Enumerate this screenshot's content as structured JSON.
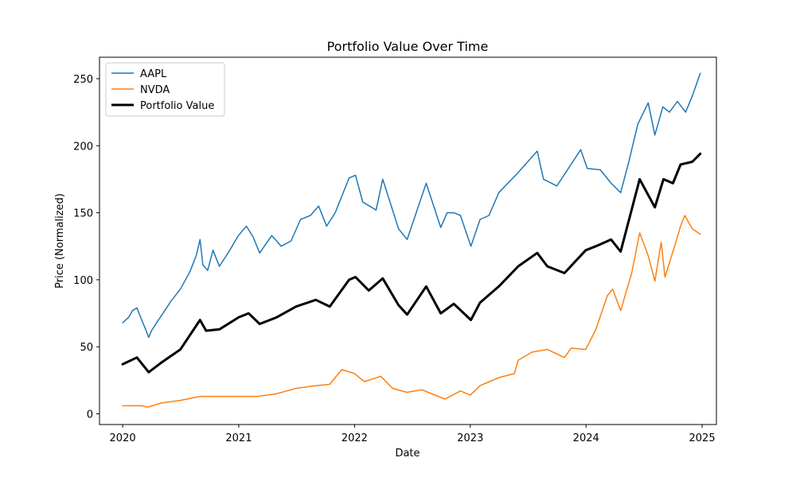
{
  "chart_data": {
    "type": "line",
    "title": "Portfolio Value Over Time",
    "xlabel": "Date",
    "ylabel": "Price (Normalized)",
    "xlim": [
      "2019-10-20",
      "2025-02-15"
    ],
    "ylim": [
      -8,
      266
    ],
    "x_ticks": [
      "2020-01-01",
      "2021-01-01",
      "2022-01-01",
      "2023-01-01",
      "2024-01-01",
      "2025-01-01"
    ],
    "x_tick_labels": [
      "2020",
      "2021",
      "2022",
      "2023",
      "2024",
      "2025"
    ],
    "y_ticks": [
      0,
      50,
      100,
      150,
      200,
      250
    ],
    "y_tick_labels": [
      "0",
      "50",
      "100",
      "150",
      "200",
      "250"
    ],
    "grid": false,
    "legend_position": "top-left",
    "series": [
      {
        "name": "AAPL",
        "color": "#1f77b4",
        "line_width": 1.5,
        "points": [
          [
            "2020-01-01",
            68
          ],
          [
            "2020-01-20",
            72
          ],
          [
            "2020-02-01",
            77
          ],
          [
            "2020-02-15",
            79
          ],
          [
            "2020-03-01",
            70
          ],
          [
            "2020-03-10",
            65
          ],
          [
            "2020-03-23",
            57
          ],
          [
            "2020-04-01",
            62
          ],
          [
            "2020-04-20",
            69
          ],
          [
            "2020-05-10",
            76
          ],
          [
            "2020-06-01",
            84
          ],
          [
            "2020-07-01",
            93
          ],
          [
            "2020-07-31",
            106
          ],
          [
            "2020-08-20",
            118
          ],
          [
            "2020-09-01",
            130
          ],
          [
            "2020-09-10",
            111
          ],
          [
            "2020-09-25",
            107
          ],
          [
            "2020-10-12",
            122
          ],
          [
            "2020-11-01",
            110
          ],
          [
            "2020-12-01",
            121
          ],
          [
            "2020-12-31",
            133
          ],
          [
            "2021-01-25",
            140
          ],
          [
            "2021-02-15",
            132
          ],
          [
            "2021-03-08",
            120
          ],
          [
            "2021-04-15",
            133
          ],
          [
            "2021-05-15",
            125
          ],
          [
            "2021-06-15",
            129
          ],
          [
            "2021-07-15",
            145
          ],
          [
            "2021-08-15",
            148
          ],
          [
            "2021-09-10",
            155
          ],
          [
            "2021-10-05",
            140
          ],
          [
            "2021-11-01",
            150
          ],
          [
            "2021-12-15",
            176
          ],
          [
            "2022-01-04",
            178
          ],
          [
            "2022-01-27",
            158
          ],
          [
            "2022-03-10",
            152
          ],
          [
            "2022-03-31",
            175
          ],
          [
            "2022-05-20",
            138
          ],
          [
            "2022-06-16",
            130
          ],
          [
            "2022-08-15",
            172
          ],
          [
            "2022-09-30",
            139
          ],
          [
            "2022-10-20",
            150
          ],
          [
            "2022-11-10",
            150
          ],
          [
            "2022-12-01",
            148
          ],
          [
            "2023-01-03",
            125
          ],
          [
            "2023-02-01",
            145
          ],
          [
            "2023-03-01",
            148
          ],
          [
            "2023-04-01",
            165
          ],
          [
            "2023-06-01",
            180
          ],
          [
            "2023-07-31",
            196
          ],
          [
            "2023-08-20",
            175
          ],
          [
            "2023-10-01",
            170
          ],
          [
            "2023-12-15",
            197
          ],
          [
            "2024-01-05",
            183
          ],
          [
            "2024-02-15",
            182
          ],
          [
            "2024-03-20",
            172
          ],
          [
            "2024-04-19",
            165
          ],
          [
            "2024-05-15",
            188
          ],
          [
            "2024-06-12",
            216
          ],
          [
            "2024-07-15",
            232
          ],
          [
            "2024-08-05",
            208
          ],
          [
            "2024-08-30",
            229
          ],
          [
            "2024-09-20",
            225
          ],
          [
            "2024-10-15",
            233
          ],
          [
            "2024-11-10",
            225
          ],
          [
            "2024-12-01",
            237
          ],
          [
            "2024-12-26",
            254
          ]
        ]
      },
      {
        "name": "NVDA",
        "color": "#ff7f0e",
        "line_width": 1.5,
        "points": [
          [
            "2020-01-01",
            6
          ],
          [
            "2020-03-01",
            6
          ],
          [
            "2020-03-20",
            5
          ],
          [
            "2020-05-01",
            8
          ],
          [
            "2020-07-01",
            10
          ],
          [
            "2020-09-01",
            13
          ],
          [
            "2020-11-01",
            13
          ],
          [
            "2021-01-01",
            13
          ],
          [
            "2021-03-01",
            13
          ],
          [
            "2021-05-01",
            15
          ],
          [
            "2021-07-01",
            19
          ],
          [
            "2021-09-01",
            21
          ],
          [
            "2021-10-15",
            22
          ],
          [
            "2021-11-22",
            33
          ],
          [
            "2022-01-01",
            30
          ],
          [
            "2022-02-01",
            24
          ],
          [
            "2022-03-25",
            28
          ],
          [
            "2022-05-01",
            19
          ],
          [
            "2022-06-15",
            16
          ],
          [
            "2022-08-01",
            18
          ],
          [
            "2022-10-13",
            11
          ],
          [
            "2022-12-01",
            17
          ],
          [
            "2023-01-01",
            14
          ],
          [
            "2023-02-01",
            21
          ],
          [
            "2023-04-01",
            27
          ],
          [
            "2023-05-20",
            30
          ],
          [
            "2023-06-01",
            40
          ],
          [
            "2023-07-15",
            46
          ],
          [
            "2023-09-01",
            48
          ],
          [
            "2023-10-25",
            42
          ],
          [
            "2023-11-15",
            49
          ],
          [
            "2023-12-31",
            48
          ],
          [
            "2024-02-01",
            63
          ],
          [
            "2024-03-08",
            88
          ],
          [
            "2024-03-25",
            93
          ],
          [
            "2024-04-19",
            77
          ],
          [
            "2024-05-24",
            105
          ],
          [
            "2024-06-18",
            135
          ],
          [
            "2024-07-15",
            118
          ],
          [
            "2024-08-05",
            99
          ],
          [
            "2024-08-25",
            128
          ],
          [
            "2024-09-06",
            102
          ],
          [
            "2024-10-01",
            121
          ],
          [
            "2024-10-25",
            140
          ],
          [
            "2024-11-07",
            148
          ],
          [
            "2024-12-01",
            138
          ],
          [
            "2024-12-26",
            134
          ]
        ]
      },
      {
        "name": "Portfolio Value",
        "color": "#000000",
        "line_width": 3,
        "points": [
          [
            "2020-01-01",
            37
          ],
          [
            "2020-02-15",
            42
          ],
          [
            "2020-03-23",
            31
          ],
          [
            "2020-05-01",
            38
          ],
          [
            "2020-07-01",
            48
          ],
          [
            "2020-09-01",
            70
          ],
          [
            "2020-09-20",
            62
          ],
          [
            "2020-11-01",
            63
          ],
          [
            "2021-01-01",
            72
          ],
          [
            "2021-02-01",
            75
          ],
          [
            "2021-03-08",
            67
          ],
          [
            "2021-05-01",
            72
          ],
          [
            "2021-07-01",
            80
          ],
          [
            "2021-09-01",
            85
          ],
          [
            "2021-10-15",
            80
          ],
          [
            "2021-12-15",
            100
          ],
          [
            "2022-01-04",
            102
          ],
          [
            "2022-02-15",
            92
          ],
          [
            "2022-03-31",
            101
          ],
          [
            "2022-05-20",
            81
          ],
          [
            "2022-06-16",
            74
          ],
          [
            "2022-08-15",
            95
          ],
          [
            "2022-09-30",
            75
          ],
          [
            "2022-11-10",
            82
          ],
          [
            "2023-01-03",
            70
          ],
          [
            "2023-02-01",
            83
          ],
          [
            "2023-04-01",
            95
          ],
          [
            "2023-06-01",
            110
          ],
          [
            "2023-07-31",
            120
          ],
          [
            "2023-09-01",
            110
          ],
          [
            "2023-10-25",
            105
          ],
          [
            "2023-12-31",
            122
          ],
          [
            "2024-02-01",
            125
          ],
          [
            "2024-03-20",
            130
          ],
          [
            "2024-04-19",
            121
          ],
          [
            "2024-06-18",
            175
          ],
          [
            "2024-08-05",
            154
          ],
          [
            "2024-09-01",
            175
          ],
          [
            "2024-10-01",
            172
          ],
          [
            "2024-10-25",
            186
          ],
          [
            "2024-12-01",
            188
          ],
          [
            "2024-12-26",
            194
          ]
        ]
      }
    ]
  }
}
